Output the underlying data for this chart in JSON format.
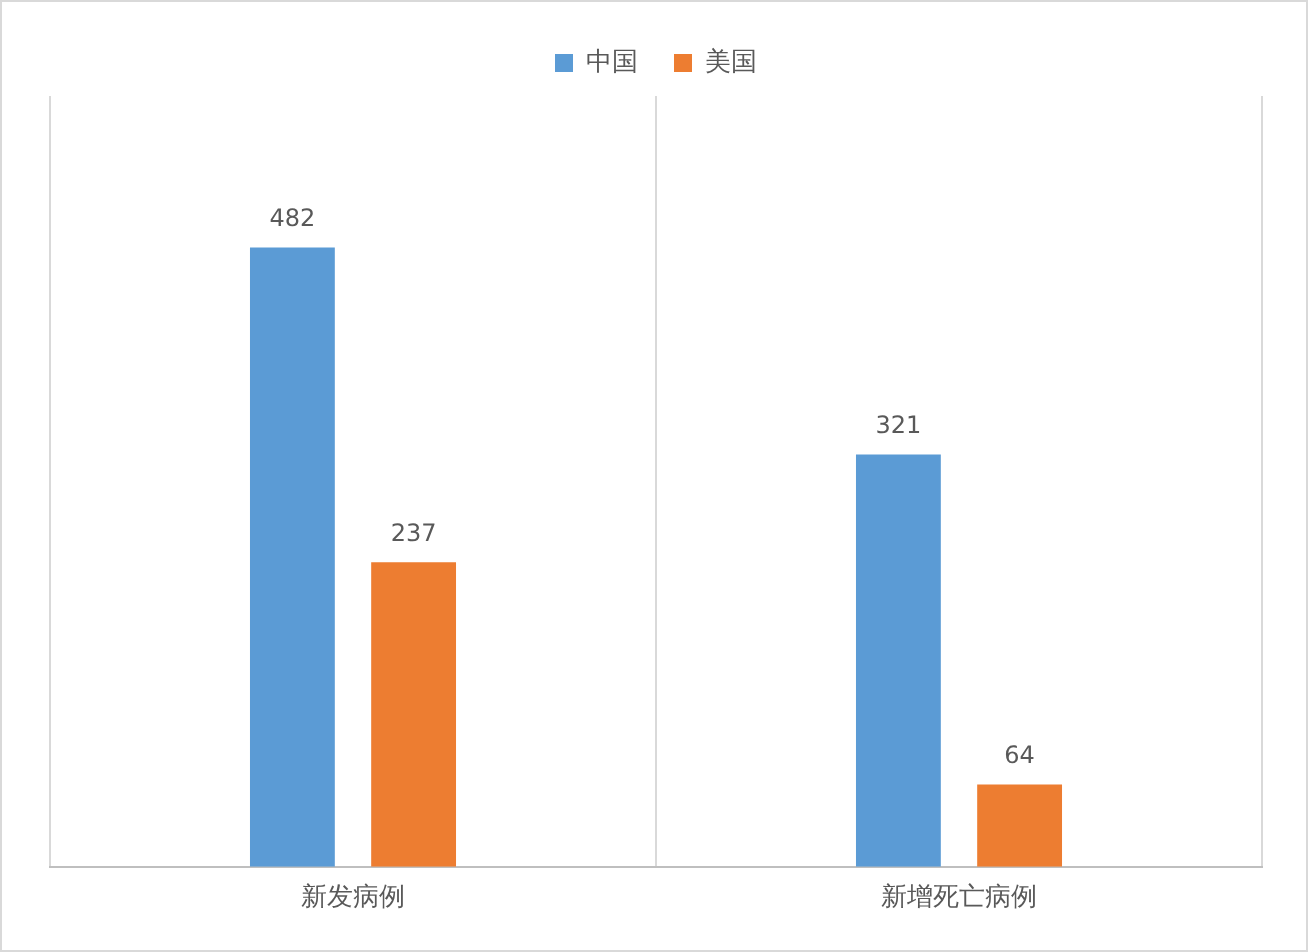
{
  "chart_data": {
    "type": "bar",
    "categories": [
      "新发病例",
      "新增死亡病例"
    ],
    "series": [
      {
        "name": "中国",
        "color": "#5b9bd5",
        "values": [
          482,
          321
        ]
      },
      {
        "name": "美国",
        "color": "#ed7d31",
        "values": [
          237,
          64
        ]
      }
    ],
    "data_labels": true,
    "grid": "x",
    "legend": "top"
  }
}
